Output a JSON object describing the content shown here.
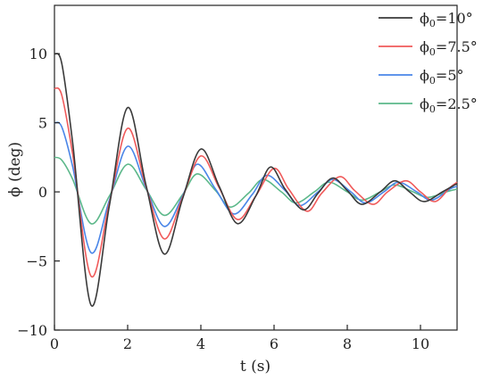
{
  "chart_data": {
    "type": "line",
    "title": "",
    "xlabel": "t (s)",
    "ylabel": "ϕ (deg)",
    "xlim": [
      0,
      11
    ],
    "ylim": [
      -10,
      13.5
    ],
    "xticks": [
      0,
      2,
      4,
      6,
      8,
      10
    ],
    "yticks": [
      -10,
      -5,
      0,
      5,
      10
    ],
    "xtick_labels": [
      "0",
      "2",
      "4",
      "6",
      "8",
      "10"
    ],
    "ytick_labels": [
      "−10",
      "−5",
      "0",
      "5",
      "10"
    ],
    "grid": false,
    "legend_position": "top-right",
    "series": [
      {
        "name": "ϕ0=10°",
        "label_main": "ϕ",
        "label_sub": "0",
        "label_rest": "=10°",
        "color": "#3a3a3a",
        "x": [
          0,
          0.2,
          0.5,
          1.0,
          1.5,
          2.0,
          2.5,
          3.0,
          3.5,
          4.0,
          4.5,
          5.0,
          5.5,
          5.9,
          6.3,
          6.8,
          7.2,
          7.6,
          8.0,
          8.4,
          8.9,
          9.3,
          9.7,
          10.1,
          10.6,
          11.0
        ],
        "y": [
          10.0,
          9.3,
          3.5,
          -8.2,
          -1.0,
          6.1,
          0.5,
          -4.5,
          -0.5,
          3.1,
          0.4,
          -2.3,
          -0.3,
          1.8,
          0.2,
          -1.3,
          -0.1,
          1.0,
          0.1,
          -0.9,
          0.0,
          0.8,
          0.0,
          -0.7,
          0.0,
          0.6
        ]
      },
      {
        "name": "ϕ0=7.5°",
        "label_main": "ϕ",
        "label_sub": "0",
        "label_rest": "=7.5°",
        "color": "#f05a5a",
        "x": [
          0,
          0.2,
          0.5,
          1.0,
          1.5,
          2.0,
          2.5,
          3.0,
          3.5,
          4.0,
          4.5,
          5.0,
          5.5,
          6.0,
          6.4,
          6.9,
          7.3,
          7.8,
          8.2,
          8.7,
          9.1,
          9.6,
          10.0,
          10.4,
          10.8,
          11.0
        ],
        "y": [
          7.5,
          7.0,
          2.7,
          -6.1,
          -0.8,
          4.6,
          0.4,
          -3.4,
          -0.4,
          2.6,
          0.3,
          -2.0,
          -0.3,
          1.7,
          0.2,
          -1.4,
          -0.1,
          1.1,
          0.1,
          -0.9,
          0.0,
          0.8,
          0.0,
          -0.7,
          0.3,
          0.7
        ]
      },
      {
        "name": "ϕ0=5°",
        "label_main": "ϕ",
        "label_sub": "0",
        "label_rest": "=5°",
        "color": "#4a86e8",
        "x": [
          0,
          0.2,
          0.5,
          1.0,
          1.5,
          2.0,
          2.5,
          3.0,
          3.5,
          3.9,
          4.4,
          4.9,
          5.4,
          5.8,
          6.3,
          6.7,
          7.2,
          7.6,
          8.1,
          8.5,
          9.0,
          9.4,
          9.9,
          10.3,
          10.8,
          11.0
        ],
        "y": [
          5.0,
          4.7,
          1.8,
          -4.4,
          -0.6,
          3.3,
          0.3,
          -2.5,
          -0.3,
          2.0,
          0.2,
          -1.6,
          -0.2,
          1.2,
          0.1,
          -1.0,
          0.0,
          0.9,
          0.0,
          -0.8,
          0.0,
          0.7,
          0.0,
          -0.6,
          0.2,
          0.4
        ]
      },
      {
        "name": "ϕ0=2.5°",
        "label_main": "ϕ",
        "label_sub": "0",
        "label_rest": "=2.5°",
        "color": "#5cb88a",
        "x": [
          0,
          0.2,
          0.5,
          1.0,
          1.5,
          2.0,
          2.5,
          3.0,
          3.5,
          3.9,
          4.4,
          4.8,
          5.3,
          5.7,
          6.2,
          6.6,
          7.1,
          7.5,
          8.0,
          8.4,
          8.9,
          9.3,
          9.8,
          10.2,
          10.7,
          11.0
        ],
        "y": [
          2.5,
          2.3,
          0.9,
          -2.3,
          -0.3,
          2.0,
          0.2,
          -1.7,
          -0.2,
          1.3,
          0.1,
          -1.1,
          -0.1,
          0.9,
          0.0,
          -0.8,
          0.0,
          0.7,
          0.0,
          -0.6,
          0.0,
          0.5,
          0.0,
          -0.4,
          0.0,
          0.2
        ]
      }
    ]
  }
}
